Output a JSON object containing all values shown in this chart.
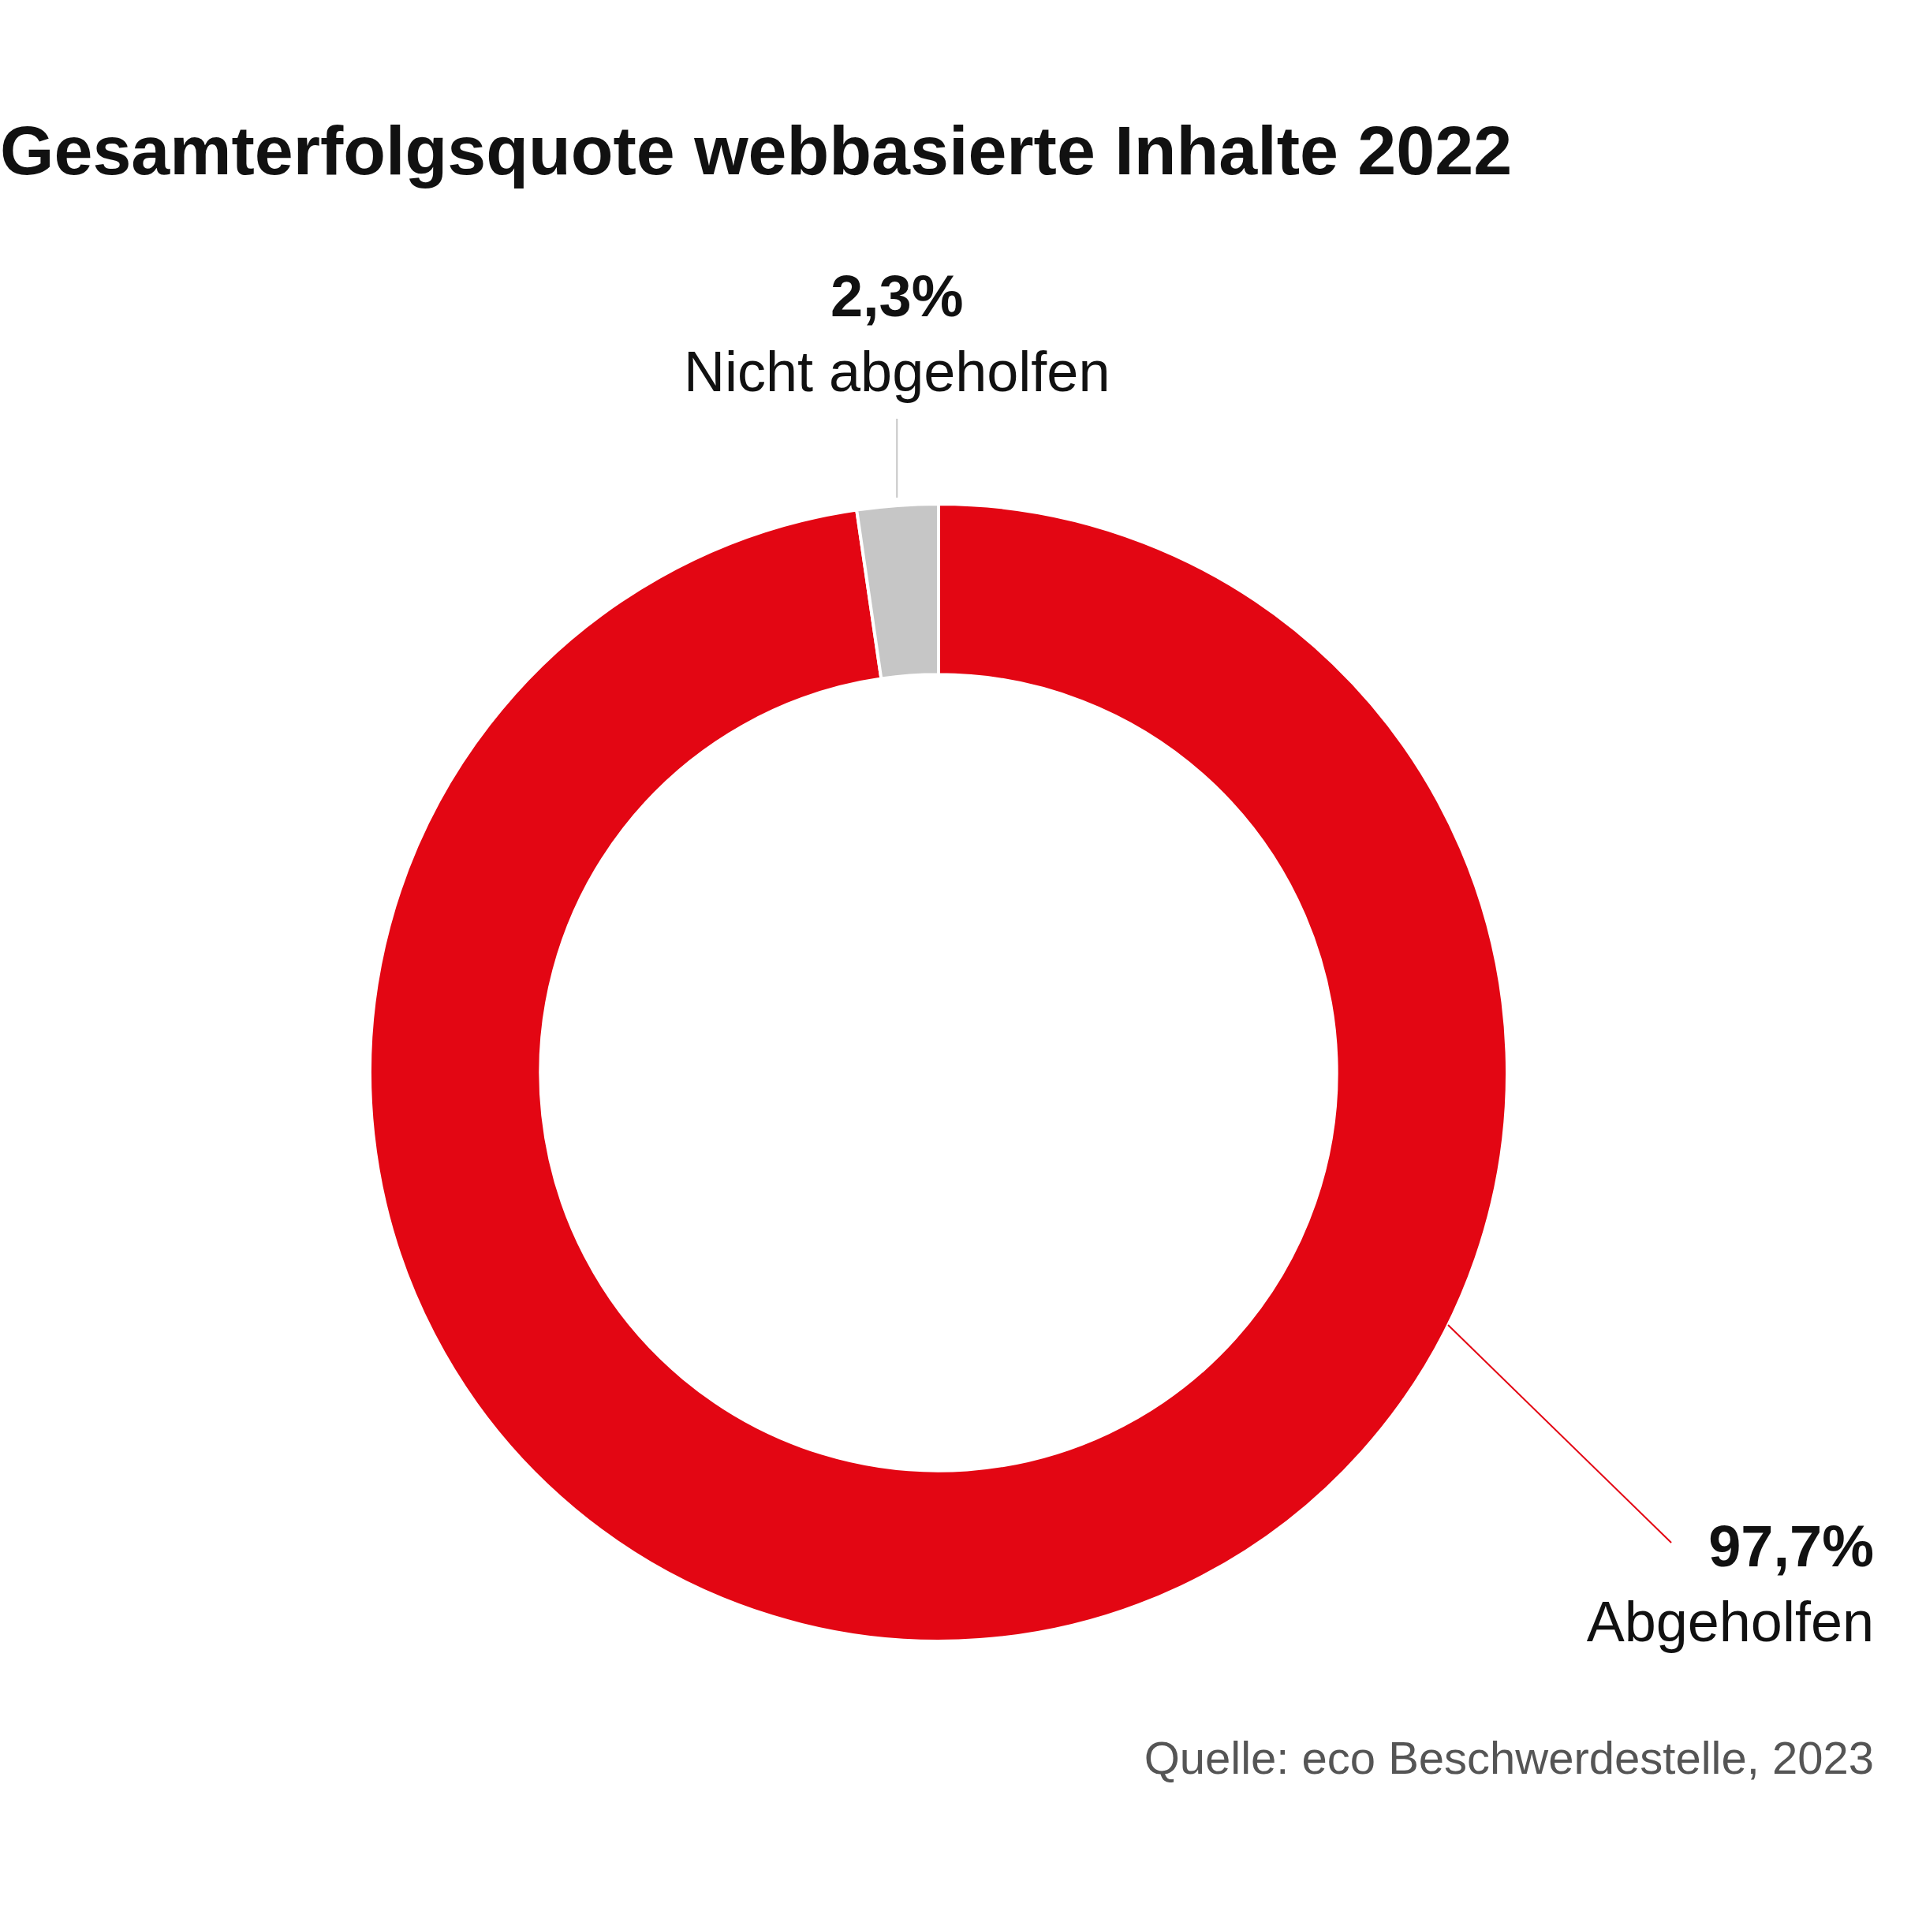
{
  "chart_data": {
    "type": "donut",
    "title": "Gesamterfolgsquote webbasierte Inhalte 2022",
    "categories": [
      "Abgeholfen",
      "Nicht abgeholfen"
    ],
    "values": [
      97.7,
      2.3
    ],
    "colors": [
      "#e30613",
      "#c6c6c6"
    ],
    "value_labels": [
      "97,7%",
      "2,3%"
    ],
    "annotations": [
      "Quelle: eco Beschwerdestelle, 2023"
    ]
  }
}
